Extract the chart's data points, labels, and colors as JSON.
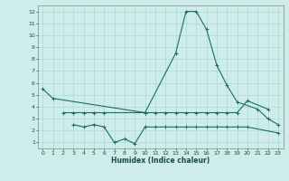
{
  "xlabel": "Humidex (Indice chaleur)",
  "background_color": "#ceecea",
  "grid_color": "#aed8d4",
  "line_color": "#1a6e62",
  "xlim": [
    -0.5,
    23.5
  ],
  "ylim": [
    0.5,
    12.5
  ],
  "yticks": [
    1,
    2,
    3,
    4,
    5,
    6,
    7,
    8,
    9,
    10,
    11,
    12
  ],
  "xticks": [
    0,
    1,
    2,
    3,
    4,
    5,
    6,
    7,
    8,
    9,
    10,
    11,
    12,
    13,
    14,
    15,
    16,
    17,
    18,
    19,
    20,
    21,
    22,
    23
  ],
  "series1_x": [
    0,
    1,
    10,
    13,
    14,
    15,
    16,
    17,
    18,
    19,
    21,
    22,
    23
  ],
  "series1_y": [
    5.5,
    4.7,
    3.5,
    8.5,
    12.0,
    12.0,
    10.5,
    7.5,
    5.8,
    4.4,
    3.8,
    3.0,
    2.5
  ],
  "series2_x": [
    2,
    3,
    4,
    5,
    6,
    10,
    11,
    12,
    13,
    14,
    15,
    16,
    17,
    18,
    19,
    20,
    22
  ],
  "series2_y": [
    3.5,
    3.5,
    3.5,
    3.5,
    3.5,
    3.5,
    3.5,
    3.5,
    3.5,
    3.5,
    3.5,
    3.5,
    3.5,
    3.5,
    3.5,
    4.5,
    3.8
  ],
  "series3_x": [
    3,
    4,
    5,
    6,
    7,
    8,
    9,
    10
  ],
  "series3_y": [
    2.5,
    2.3,
    2.5,
    2.3,
    1.0,
    1.3,
    0.9,
    2.3
  ],
  "series4_x": [
    10,
    11,
    12,
    13,
    14,
    15,
    16,
    17,
    18,
    19,
    20,
    23
  ],
  "series4_y": [
    2.3,
    2.3,
    2.3,
    2.3,
    2.3,
    2.3,
    2.3,
    2.3,
    2.3,
    2.3,
    2.3,
    1.8
  ]
}
